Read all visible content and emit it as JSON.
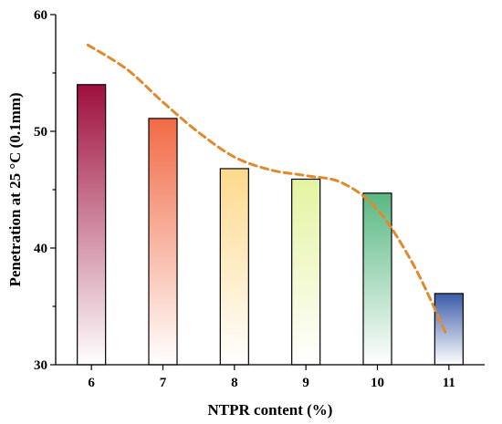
{
  "chart_data": {
    "type": "bar",
    "title": "",
    "xlabel": "NTPR content (%)",
    "ylabel": "Penetration at 25 °C (0.1mm)",
    "categories": [
      "6",
      "7",
      "8",
      "9",
      "10",
      "11"
    ],
    "values": [
      54.0,
      51.1,
      46.8,
      45.9,
      44.7,
      36.1
    ],
    "bar_colors": [
      "#9e0f3e",
      "#f26a45",
      "#fed98c",
      "#e4f3a0",
      "#5ab882",
      "#3b5ba9"
    ],
    "ylim": [
      30,
      60
    ],
    "yticks": [
      30,
      40,
      50,
      60
    ],
    "grid": false,
    "legend": "none",
    "trend_line": {
      "style": "dashed",
      "color": "#e08a2e",
      "x": [
        5.95,
        6.5,
        7,
        7.5,
        8,
        8.5,
        9,
        9.5,
        10,
        10.5,
        10.95
      ],
      "y": [
        57.4,
        55.3,
        52.5,
        49.9,
        47.8,
        46.7,
        46.2,
        45.6,
        43.3,
        38.6,
        32.8
      ]
    }
  }
}
